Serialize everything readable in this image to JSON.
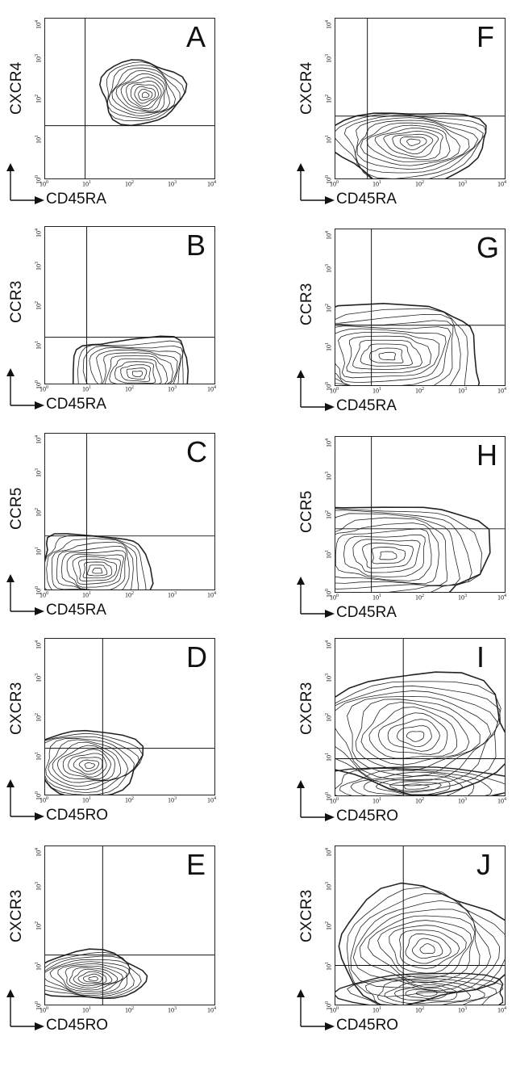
{
  "ticks": [
    "10",
    "10",
    "10",
    "10",
    "10"
  ],
  "tick_exponents": [
    "0",
    "1",
    "2",
    "3",
    "4"
  ],
  "y_tick_zero": "0",
  "panels": [
    {
      "letter": "A",
      "ylabel": "CXCR4",
      "xlabel": "CD45RA"
    },
    {
      "letter": "F",
      "ylabel": "CXCR4",
      "xlabel": "CD45RA"
    },
    {
      "letter": "B",
      "ylabel": "CCR3",
      "xlabel": "CD45RA"
    },
    {
      "letter": "G",
      "ylabel": "CCR3",
      "xlabel": "CD45RA"
    },
    {
      "letter": "C",
      "ylabel": "CCR5",
      "xlabel": "CD45RA"
    },
    {
      "letter": "H",
      "ylabel": "CCR5",
      "xlabel": "CD45RA"
    },
    {
      "letter": "D",
      "ylabel": "CXCR3",
      "xlabel": "CD45RO"
    },
    {
      "letter": "I",
      "ylabel": "CXCR3",
      "xlabel": "CD45RO"
    },
    {
      "letter": "E",
      "ylabel": "CXCR3",
      "xlabel": "CD45RO"
    },
    {
      "letter": "J",
      "ylabel": "CXCR3",
      "xlabel": "CD45RO"
    }
  ]
}
